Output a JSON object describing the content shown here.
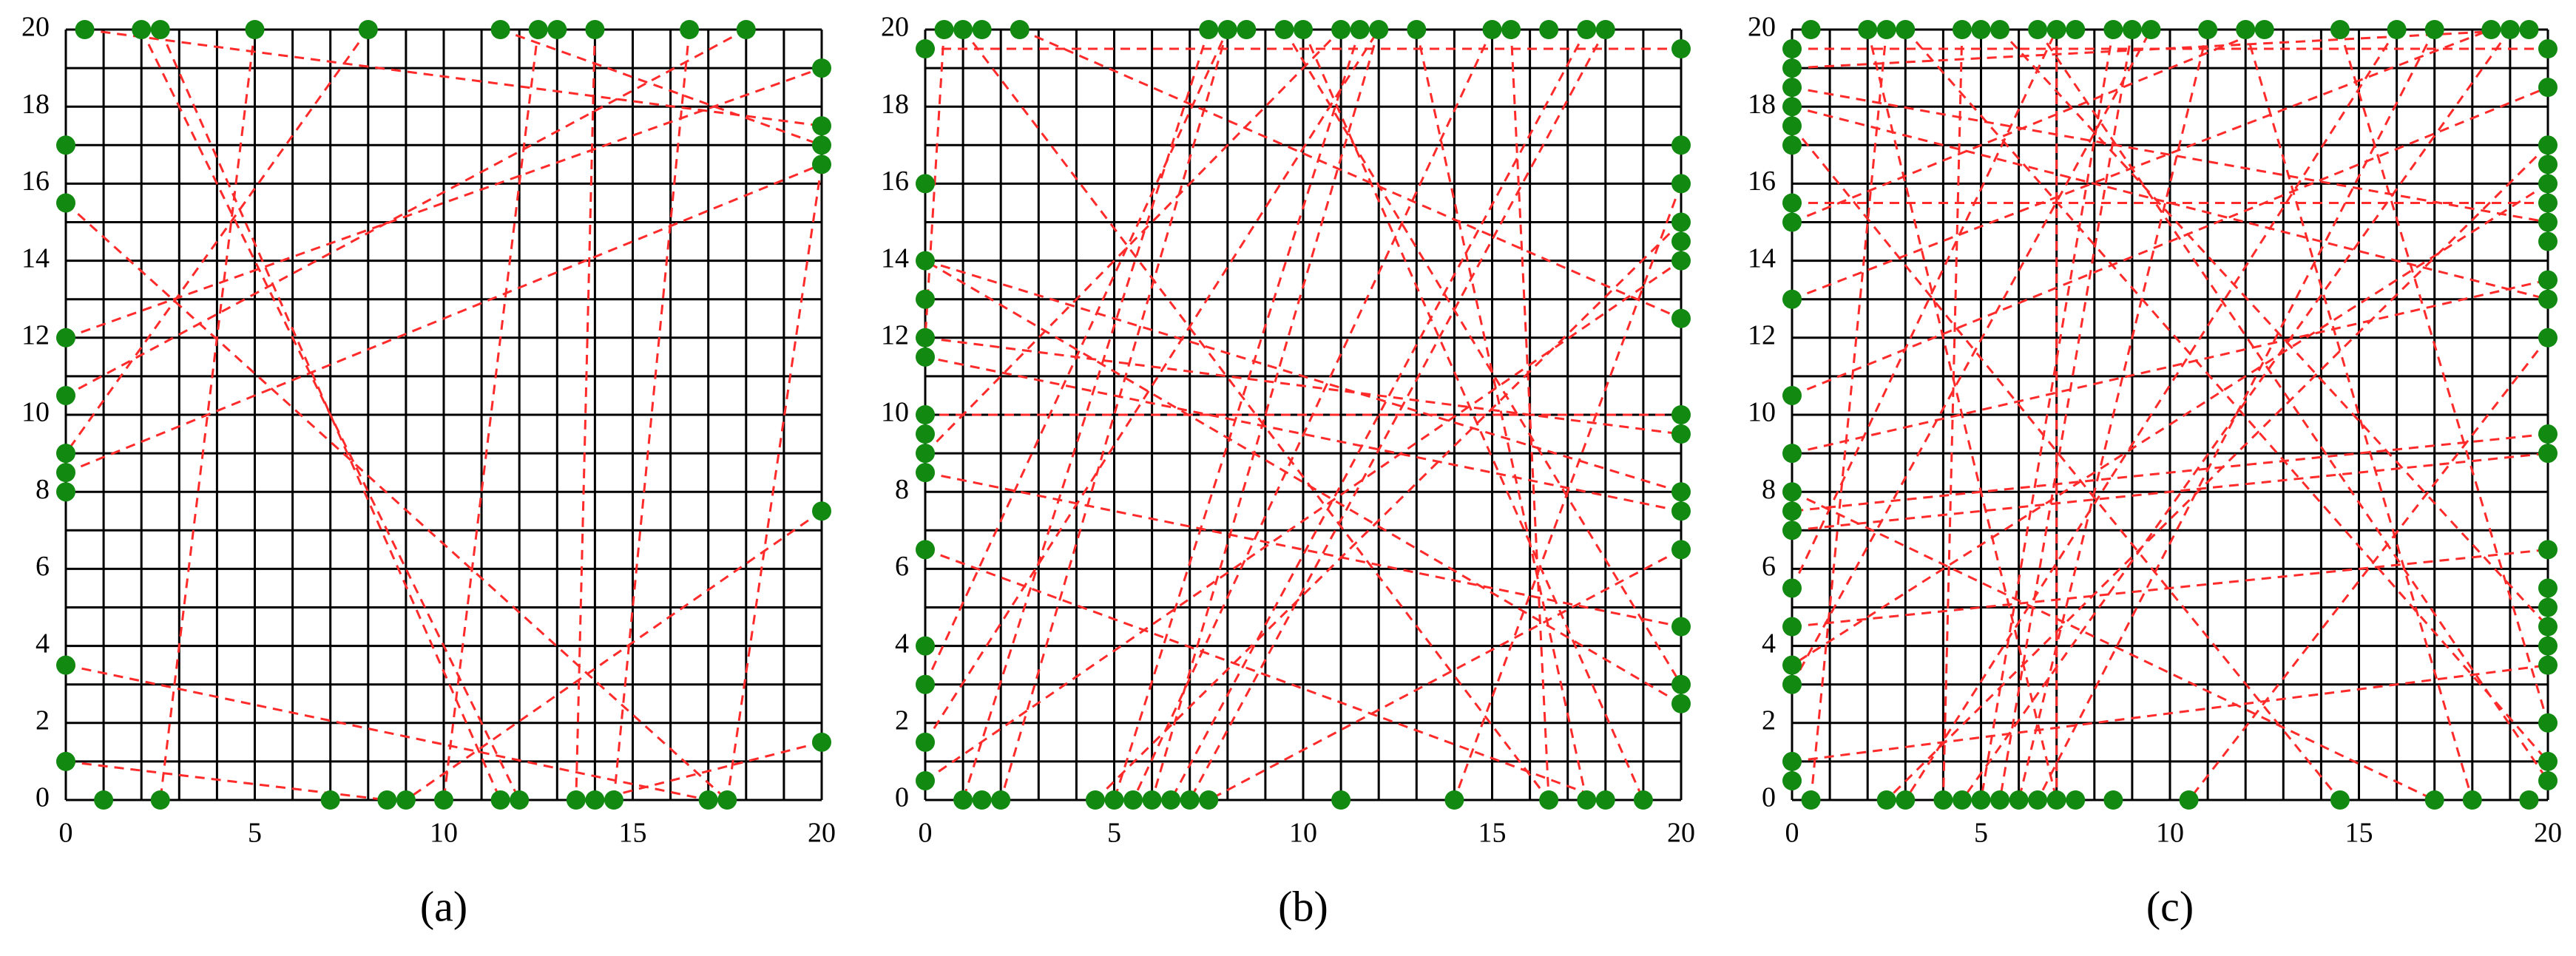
{
  "chart_data": [
    {
      "type": "scatter",
      "caption": "(a)",
      "color": "#128a12",
      "line_color": "#ff2a2a",
      "xlim": [
        0,
        20
      ],
      "ylim": [
        0,
        20
      ],
      "xticks": [
        0,
        5,
        10,
        15,
        20
      ],
      "yticks": [
        0,
        2,
        4,
        6,
        8,
        10,
        12,
        14,
        16,
        18,
        20
      ],
      "grid": true,
      "grid_step": 1,
      "x": [
        0.5,
        2,
        2.5,
        5,
        8,
        11.5,
        12.5,
        13,
        14,
        16.5,
        18,
        20,
        20,
        20,
        20,
        20,
        20,
        0,
        0,
        0,
        0,
        0,
        0,
        0,
        0,
        0,
        1,
        2.5,
        7,
        8.5,
        9,
        10,
        11.5,
        12,
        13.5,
        14,
        14.5,
        17,
        17.5
      ],
      "y": [
        20,
        20,
        20,
        20,
        20,
        20,
        20,
        20,
        20,
        20,
        20,
        19,
        17.5,
        17,
        16.5,
        7.5,
        1.5,
        17,
        15.5,
        12,
        10.5,
        9,
        8.5,
        8,
        3.5,
        1,
        0,
        0,
        0,
        0,
        0,
        0,
        0,
        0,
        0,
        0,
        0,
        0,
        0
      ],
      "lines": [
        [
          0.5,
          20,
          20,
          17.5
        ],
        [
          2,
          20,
          12,
          0
        ],
        [
          2.5,
          20,
          11.5,
          0
        ],
        [
          5,
          20,
          2.5,
          0
        ],
        [
          8,
          20,
          0,
          9
        ],
        [
          11.5,
          20,
          20,
          17
        ],
        [
          12.5,
          20,
          10,
          0
        ],
        [
          14,
          20,
          13.5,
          0
        ],
        [
          16.5,
          20,
          14.5,
          0
        ],
        [
          18,
          20,
          0,
          10.5
        ],
        [
          0,
          12,
          20,
          19
        ],
        [
          0,
          15.5,
          17.5,
          0
        ],
        [
          0,
          3.5,
          17,
          0
        ],
        [
          0,
          1,
          8.5,
          0
        ],
        [
          20,
          16.5,
          17.5,
          0
        ],
        [
          20,
          7.5,
          9,
          0
        ],
        [
          20,
          1.5,
          14,
          0
        ],
        [
          0,
          8.5,
          20,
          16.5
        ]
      ]
    },
    {
      "type": "scatter",
      "caption": "(b)",
      "color": "#128a12",
      "line_color": "#ff2a2a",
      "xlim": [
        0,
        20
      ],
      "ylim": [
        0,
        20
      ],
      "xticks": [
        0,
        5,
        10,
        15,
        20
      ],
      "yticks": [
        0,
        2,
        4,
        6,
        8,
        10,
        12,
        14,
        16,
        18,
        20
      ],
      "grid": true,
      "grid_step": 1,
      "x": [
        0.5,
        1,
        1.5,
        2.5,
        7.5,
        8,
        8.5,
        9.5,
        10,
        11,
        11.5,
        12,
        13,
        15,
        15.5,
        16.5,
        17.5,
        18,
        20,
        20,
        20,
        20,
        20,
        20,
        20,
        20,
        20,
        20,
        20,
        20,
        20,
        20,
        20,
        0,
        0,
        0,
        0,
        0,
        0,
        0,
        0,
        0,
        0,
        0,
        0,
        0,
        0,
        0,
        1,
        1.5,
        2,
        4.5,
        5,
        5.5,
        6,
        6.5,
        7,
        7.5,
        11,
        14,
        16.5,
        17.5,
        18,
        19
      ],
      "y": [
        20,
        20,
        20,
        20,
        20,
        20,
        20,
        20,
        20,
        20,
        20,
        20,
        20,
        20,
        20,
        20,
        20,
        20,
        19.5,
        17,
        16,
        15,
        14.5,
        14,
        12.5,
        10,
        9.5,
        8,
        7.5,
        6.5,
        4.5,
        3,
        2.5,
        19.5,
        16,
        14,
        13,
        12,
        11.5,
        10,
        9.5,
        9,
        8.5,
        6.5,
        4,
        3,
        1.5,
        0.5,
        0,
        0,
        0,
        0,
        0,
        0,
        0,
        0,
        0,
        0,
        0,
        0,
        0,
        0,
        0,
        0
      ],
      "lines": [
        [
          0,
          19.5,
          20,
          19.5
        ],
        [
          0.5,
          20,
          0,
          12
        ],
        [
          1,
          20,
          16.5,
          0
        ],
        [
          2.5,
          20,
          20,
          12.5
        ],
        [
          0,
          14,
          20,
          8
        ],
        [
          0,
          12,
          20,
          9.5
        ],
        [
          0,
          9,
          11,
          20
        ],
        [
          0,
          8.5,
          20,
          4.5
        ],
        [
          0,
          6.5,
          18,
          0
        ],
        [
          0,
          3,
          8,
          20
        ],
        [
          0,
          1.5,
          12,
          20
        ],
        [
          0,
          0.5,
          20,
          14
        ],
        [
          7.5,
          20,
          1,
          0
        ],
        [
          8,
          20,
          2,
          0
        ],
        [
          9.5,
          20,
          20,
          3
        ],
        [
          10,
          20,
          19,
          0
        ],
        [
          11.5,
          20,
          5,
          0
        ],
        [
          12,
          20,
          6,
          0
        ],
        [
          15,
          20,
          5.5,
          0
        ],
        [
          15.5,
          20,
          16.5,
          0
        ],
        [
          17.5,
          20,
          6.5,
          0
        ],
        [
          18,
          20,
          7,
          0
        ],
        [
          20,
          16,
          14,
          0
        ],
        [
          20,
          15,
          4.5,
          0
        ],
        [
          20,
          10,
          0,
          10
        ],
        [
          20,
          7.5,
          0,
          11.5
        ],
        [
          20,
          6.5,
          7.5,
          0
        ],
        [
          20,
          2.5,
          0,
          14
        ],
        [
          13,
          20,
          17.5,
          0
        ]
      ]
    },
    {
      "type": "scatter",
      "caption": "(c)",
      "color": "#128a12",
      "line_color": "#ff2a2a",
      "xlim": [
        0,
        20
      ],
      "ylim": [
        0,
        20
      ],
      "xticks": [
        0,
        5,
        10,
        15,
        20
      ],
      "yticks": [
        0,
        2,
        4,
        6,
        8,
        10,
        12,
        14,
        16,
        18,
        20
      ],
      "grid": true,
      "grid_step": 1,
      "x": [
        0.5,
        2,
        2.5,
        3,
        4.5,
        5,
        5.5,
        6.5,
        7,
        7.5,
        8.5,
        9,
        9.5,
        11,
        12,
        12.5,
        14.5,
        16,
        17,
        18.5,
        19,
        19.5,
        20,
        20,
        20,
        20,
        20,
        20,
        20,
        20,
        20,
        20,
        20,
        20,
        20,
        20,
        20,
        20,
        20,
        20,
        20,
        20,
        20,
        20,
        0,
        0,
        0,
        0,
        0,
        0,
        0,
        0,
        0,
        0,
        0,
        0,
        0,
        0,
        0,
        0,
        0,
        0,
        0,
        0,
        0.5,
        2.5,
        3,
        4,
        4.5,
        5,
        5.5,
        6,
        6.5,
        7,
        7.5,
        8.5,
        10.5,
        14.5,
        17,
        18,
        19.5
      ],
      "y": [
        20,
        20,
        20,
        20,
        20,
        20,
        20,
        20,
        20,
        20,
        20,
        20,
        20,
        20,
        20,
        20,
        20,
        20,
        20,
        20,
        20,
        20,
        19.5,
        18.5,
        17,
        16.5,
        16,
        15.5,
        15,
        14.5,
        13.5,
        13,
        12,
        9.5,
        9,
        6.5,
        5.5,
        5,
        4.5,
        4,
        3.5,
        2,
        1,
        0.5,
        19.5,
        19,
        18.5,
        18,
        17.5,
        17,
        15.5,
        15,
        13,
        10.5,
        9,
        8,
        7.5,
        7,
        5.5,
        4.5,
        3.5,
        3,
        1,
        0.5,
        0,
        0,
        0,
        0,
        0,
        0,
        0,
        0,
        0,
        0,
        0,
        0,
        0,
        0,
        0,
        0,
        0
      ],
      "lines": [
        [
          0,
          19.5,
          20,
          19.5
        ],
        [
          0,
          19,
          19.5,
          20
        ],
        [
          0,
          18.5,
          20,
          15
        ],
        [
          0,
          18,
          20,
          13
        ],
        [
          0,
          17.5,
          14.5,
          0
        ],
        [
          0,
          15.5,
          20,
          15.5
        ],
        [
          0,
          15,
          12.5,
          20
        ],
        [
          0,
          13,
          18.5,
          20
        ],
        [
          0,
          10.5,
          20,
          18.5
        ],
        [
          0,
          9,
          20,
          13.5
        ],
        [
          0,
          8,
          17,
          0
        ],
        [
          0,
          7,
          20,
          9
        ],
        [
          0,
          5.5,
          7,
          20
        ],
        [
          0,
          4.5,
          20,
          6.5
        ],
        [
          0,
          3,
          9.5,
          20
        ],
        [
          0,
          1,
          20,
          3.5
        ],
        [
          0.5,
          0,
          2.5,
          20
        ],
        [
          2,
          20,
          7,
          0
        ],
        [
          3,
          20,
          20,
          1
        ],
        [
          4.5,
          20,
          4,
          0
        ],
        [
          5.5,
          20,
          20,
          4.5
        ],
        [
          6.5,
          20,
          20,
          0.5
        ],
        [
          7,
          20,
          7,
          0
        ],
        [
          8.5,
          20,
          5,
          0
        ],
        [
          9,
          20,
          5.5,
          0
        ],
        [
          11,
          20,
          6,
          0
        ],
        [
          12,
          20,
          18,
          0
        ],
        [
          14.5,
          20,
          20,
          2
        ],
        [
          16,
          20,
          3,
          0
        ],
        [
          17,
          20,
          6.5,
          0
        ],
        [
          19,
          20,
          4.5,
          0
        ],
        [
          20,
          17,
          2.5,
          0
        ],
        [
          20,
          16,
          0,
          3.5
        ],
        [
          20,
          12,
          10.5,
          0
        ],
        [
          20,
          9.5,
          0,
          7.5
        ]
      ]
    }
  ]
}
